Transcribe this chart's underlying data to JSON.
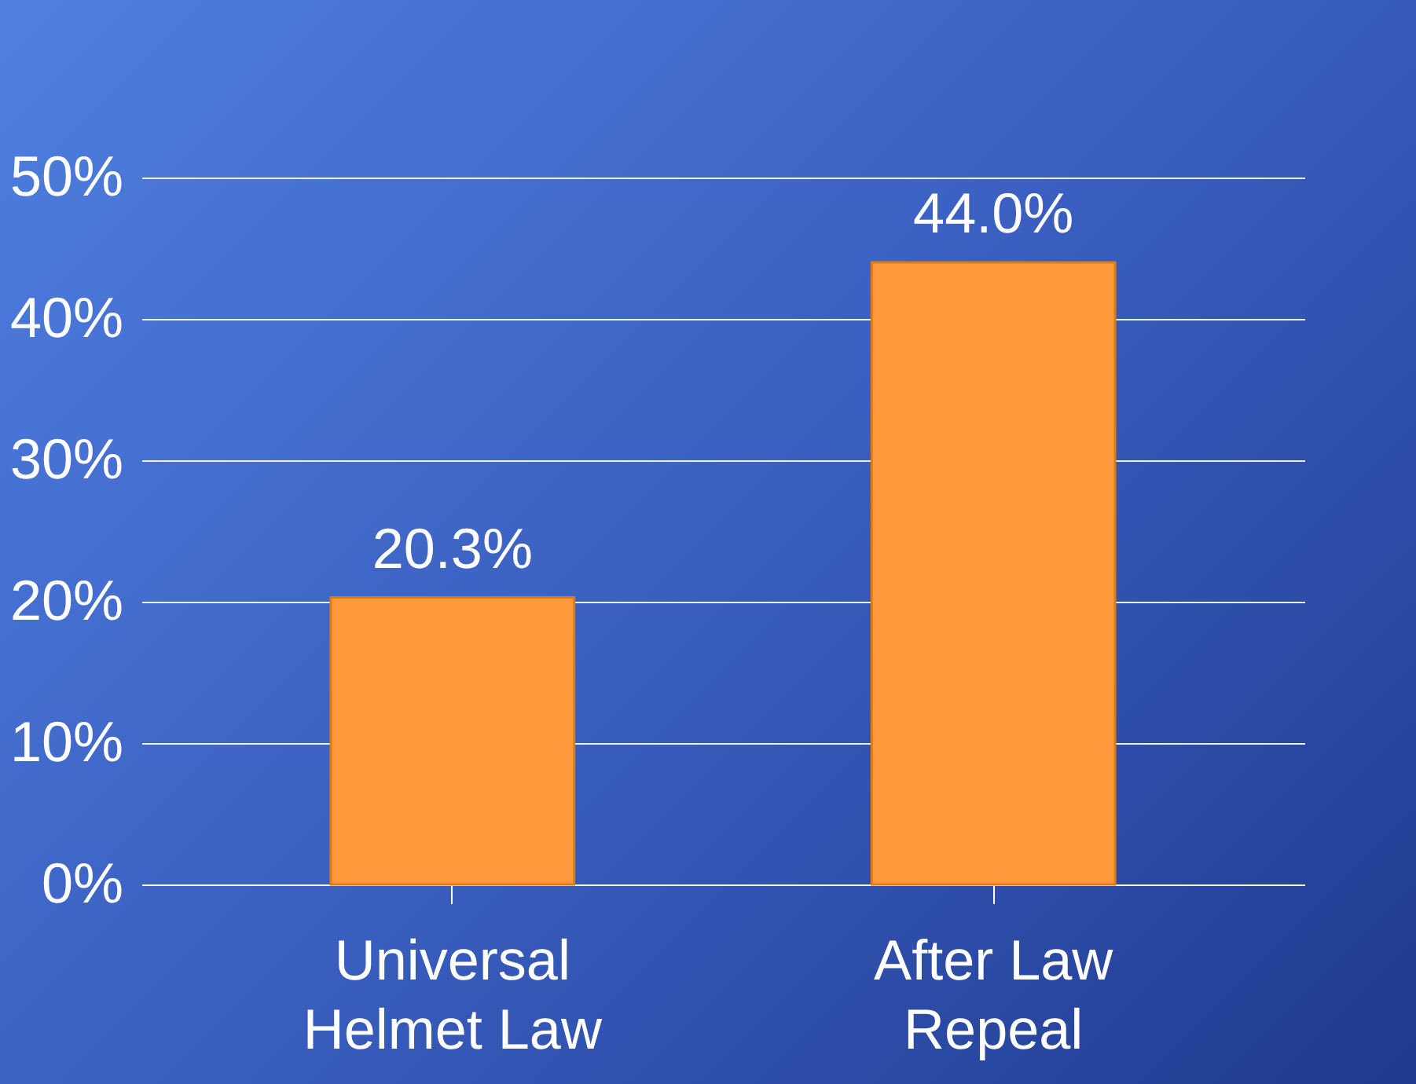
{
  "chart_data": {
    "type": "bar",
    "categories": [
      "Universal Helmet Law",
      "After Law Repeal"
    ],
    "values": [
      20.3,
      44.0
    ],
    "value_labels": [
      "20.3%",
      "44.0%"
    ],
    "color": "#ff9a3c",
    "ylim": [
      0,
      50
    ],
    "yticks": [
      {
        "value": 0,
        "label": "0%"
      },
      {
        "value": 10,
        "label": "10%"
      },
      {
        "value": 20,
        "label": "20%"
      },
      {
        "value": 30,
        "label": "30%"
      },
      {
        "value": 40,
        "label": "40%"
      },
      {
        "value": 50,
        "label": "50%"
      }
    ],
    "grid": "y"
  }
}
